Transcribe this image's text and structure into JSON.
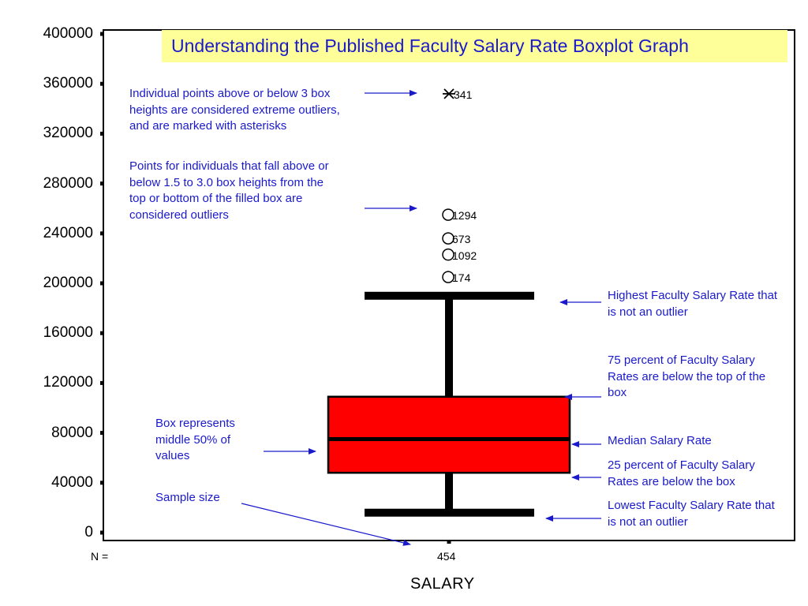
{
  "chart_data": {
    "type": "boxplot",
    "title": "Understanding the Published Faculty Salary Rate Boxplot Graph",
    "xlabel": "SALARY",
    "ylabel": "",
    "ylim": [
      0,
      400000
    ],
    "yticks": [
      "400000",
      "360000",
      "320000",
      "280000",
      "240000",
      "200000",
      "160000",
      "120000",
      "80000",
      "40000",
      "0"
    ],
    "ytick_values": [
      400000,
      360000,
      320000,
      280000,
      240000,
      200000,
      160000,
      120000,
      80000,
      40000,
      0
    ],
    "category": "454",
    "n_label": "N =",
    "box": {
      "min": 16000,
      "q1": 48000,
      "median": 75000,
      "q3": 109000,
      "max": 190000
    },
    "outliers": [
      {
        "value": 255000,
        "label": "1294",
        "marker": "circle"
      },
      {
        "value": 236000,
        "label": "673",
        "marker": "circle"
      },
      {
        "value": 223000,
        "label": "1092",
        "marker": "circle"
      },
      {
        "value": 205000,
        "label": "174",
        "marker": "circle"
      }
    ],
    "extreme_outliers": [
      {
        "value": 352000,
        "label": "341",
        "marker": "asterisk"
      }
    ],
    "colors": {
      "box_fill": "#ff0000",
      "annotation": "#1a1acc",
      "title_background": "#ffff99"
    }
  },
  "annotations": {
    "extreme_outliers": "Individual points above or below 3 box heights are considered extreme outliers, and are marked with asterisks",
    "outliers": "Points for individuals that fall above or below 1.5 to 3.0 box heights from the top or bottom of the filled box are considered outliers",
    "highest": "Highest Faculty Salary Rate that is not an outlier",
    "q3": "75 percent of Faculty Salary Rates are below the top of the box",
    "median": "Median Salary Rate",
    "q1": "25 percent of Faculty Salary Rates are below the box",
    "lowest": "Lowest Faculty Salary Rate that is not an outlier",
    "box": "Box represents middle 50% of values",
    "sample_size": "Sample size"
  }
}
